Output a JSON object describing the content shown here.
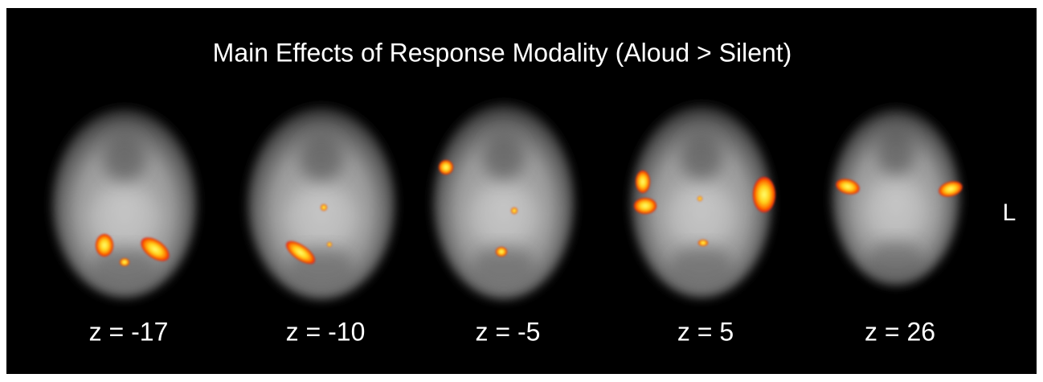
{
  "title": "Main Effects of Response Modality (Aloud > Silent)",
  "slices": [
    {
      "label": "z = -17"
    },
    {
      "label": "z = -10"
    },
    {
      "label": "z = -5"
    },
    {
      "label": "z = 5"
    },
    {
      "label": "z = 26"
    }
  ],
  "side_label": "L"
}
